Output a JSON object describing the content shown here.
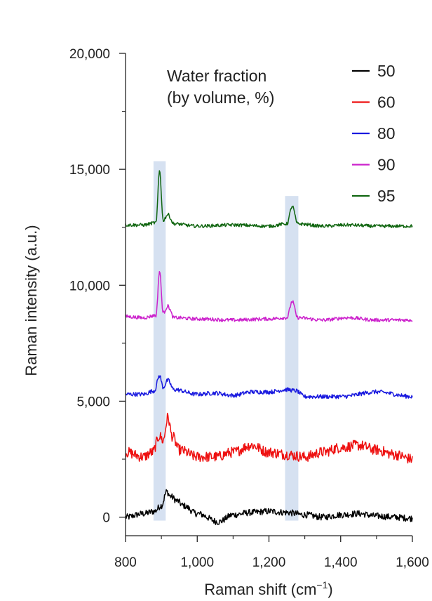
{
  "chart_data": {
    "type": "line",
    "xlabel": "Raman shift (cm",
    "xlabel_unit_sup": "−1",
    "xlabel_close": ")",
    "ylabel": "Raman intensity (a.u.)",
    "xlim": [
      800,
      1600
    ],
    "ylim": [
      -800,
      20000
    ],
    "x_ticks": [
      800,
      1000,
      1200,
      1400,
      1600
    ],
    "x_tick_labels": [
      "800",
      "1,000",
      "1,200",
      "1,400",
      "1,600"
    ],
    "y_ticks": [
      0,
      5000,
      10000,
      15000,
      20000
    ],
    "y_tick_labels": [
      "0",
      "5,000",
      "10,000",
      "15,000",
      "20,000"
    ],
    "grid": false,
    "legend_title": "Water fraction (by volume, %)",
    "legend_title_lines": [
      "Water fraction",
      "(by volume, %)"
    ],
    "legend_position": "top-right",
    "highlight_bands": [
      {
        "x0": 878,
        "x1": 912,
        "y0": -150,
        "y1": 15350
      },
      {
        "x0": 1245,
        "x1": 1282,
        "y0": -150,
        "y1": 13850
      }
    ],
    "series": [
      {
        "name": "50",
        "color": "#000000",
        "points": [
          [
            800,
            0
          ],
          [
            850,
            150
          ],
          [
            880,
            250
          ],
          [
            900,
            500
          ],
          [
            915,
            1100
          ],
          [
            925,
            900
          ],
          [
            945,
            700
          ],
          [
            960,
            500
          ],
          [
            1000,
            150
          ],
          [
            1060,
            -200
          ],
          [
            1100,
            100
          ],
          [
            1150,
            200
          ],
          [
            1200,
            250
          ],
          [
            1250,
            200
          ],
          [
            1300,
            100
          ],
          [
            1350,
            0
          ],
          [
            1400,
            100
          ],
          [
            1450,
            150
          ],
          [
            1500,
            50
          ],
          [
            1550,
            0
          ],
          [
            1600,
            -50
          ]
        ]
      },
      {
        "name": "60",
        "color": "#ee1111",
        "points": [
          [
            800,
            2800
          ],
          [
            850,
            2600
          ],
          [
            875,
            2800
          ],
          [
            895,
            3500
          ],
          [
            905,
            3300
          ],
          [
            918,
            4300
          ],
          [
            930,
            3500
          ],
          [
            950,
            2900
          ],
          [
            1000,
            2600
          ],
          [
            1050,
            2600
          ],
          [
            1100,
            2800
          ],
          [
            1150,
            3100
          ],
          [
            1200,
            2800
          ],
          [
            1250,
            2700
          ],
          [
            1300,
            2600
          ],
          [
            1350,
            2800
          ],
          [
            1400,
            3000
          ],
          [
            1450,
            3100
          ],
          [
            1500,
            2900
          ],
          [
            1550,
            2700
          ],
          [
            1600,
            2500
          ]
        ]
      },
      {
        "name": "80",
        "color": "#1a1adf",
        "points": [
          [
            800,
            5300
          ],
          [
            850,
            5300
          ],
          [
            880,
            5450
          ],
          [
            895,
            6100
          ],
          [
            905,
            5600
          ],
          [
            918,
            5900
          ],
          [
            935,
            5500
          ],
          [
            1000,
            5300
          ],
          [
            1050,
            5350
          ],
          [
            1100,
            5250
          ],
          [
            1150,
            5400
          ],
          [
            1200,
            5400
          ],
          [
            1250,
            5500
          ],
          [
            1275,
            5450
          ],
          [
            1300,
            5200
          ],
          [
            1400,
            5200
          ],
          [
            1500,
            5400
          ],
          [
            1600,
            5200
          ]
        ]
      },
      {
        "name": "90",
        "color": "#cc22cc",
        "points": [
          [
            800,
            8650
          ],
          [
            850,
            8600
          ],
          [
            885,
            8700
          ],
          [
            895,
            10600
          ],
          [
            905,
            8800
          ],
          [
            918,
            9100
          ],
          [
            935,
            8600
          ],
          [
            1000,
            8550
          ],
          [
            1100,
            8500
          ],
          [
            1200,
            8550
          ],
          [
            1250,
            8600
          ],
          [
            1265,
            9300
          ],
          [
            1280,
            8600
          ],
          [
            1350,
            8500
          ],
          [
            1420,
            8600
          ],
          [
            1500,
            8500
          ],
          [
            1600,
            8500
          ]
        ]
      },
      {
        "name": "95",
        "color": "#116611",
        "points": [
          [
            800,
            12600
          ],
          [
            850,
            12600
          ],
          [
            885,
            12700
          ],
          [
            895,
            14950
          ],
          [
            905,
            12800
          ],
          [
            918,
            13050
          ],
          [
            935,
            12650
          ],
          [
            1000,
            12550
          ],
          [
            1100,
            12600
          ],
          [
            1200,
            12550
          ],
          [
            1250,
            12650
          ],
          [
            1265,
            13400
          ],
          [
            1280,
            12650
          ],
          [
            1350,
            12550
          ],
          [
            1420,
            12600
          ],
          [
            1500,
            12550
          ],
          [
            1600,
            12550
          ]
        ]
      }
    ]
  }
}
